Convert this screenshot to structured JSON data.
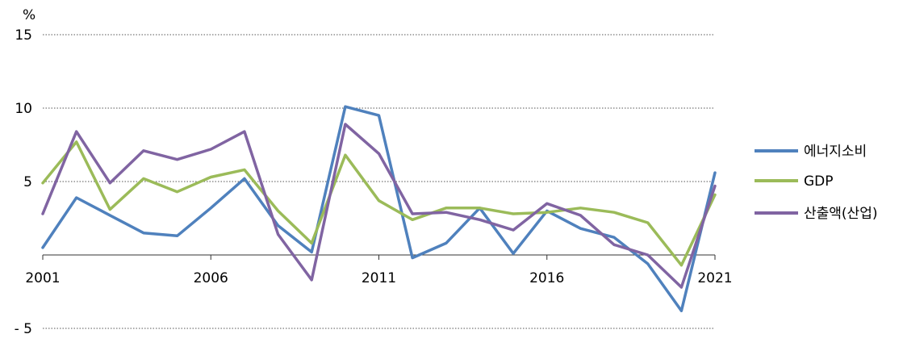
{
  "chart_data": {
    "type": "line",
    "unit_label": "%",
    "x": [
      2001,
      2002,
      2003,
      2004,
      2005,
      2006,
      2007,
      2008,
      2009,
      2010,
      2011,
      2012,
      2013,
      2014,
      2015,
      2016,
      2017,
      2018,
      2019,
      2020,
      2021
    ],
    "x_tick_labels": [
      "2001",
      "2006",
      "2011",
      "2016",
      "2021"
    ],
    "x_tick_values": [
      2001,
      2006,
      2011,
      2016,
      2021
    ],
    "y_tick_labels": [
      "15",
      "10",
      "5",
      "- 5"
    ],
    "y_tick_values": [
      15,
      10,
      5,
      -5
    ],
    "ylim": [
      -5,
      15
    ],
    "grid": "horizontal dotted",
    "legend_position": "right",
    "series": [
      {
        "name": "에너지소비",
        "color": "#4f81bd",
        "values": [
          0.5,
          3.9,
          2.7,
          1.5,
          1.3,
          3.2,
          5.2,
          2.0,
          0.2,
          10.1,
          9.5,
          -0.2,
          0.8,
          3.2,
          0.1,
          3.0,
          1.8,
          1.2,
          -0.6,
          -3.8,
          5.6
        ]
      },
      {
        "name": "GDP",
        "color": "#9bbb59",
        "values": [
          4.9,
          7.7,
          3.1,
          5.2,
          4.3,
          5.3,
          5.8,
          3.0,
          0.8,
          6.8,
          3.7,
          2.4,
          3.2,
          3.2,
          2.8,
          2.9,
          3.2,
          2.9,
          2.2,
          -0.7,
          4.1
        ]
      },
      {
        "name": "산출액(산업)",
        "color": "#8064a2",
        "values": [
          2.8,
          8.4,
          4.9,
          7.1,
          6.5,
          7.2,
          8.4,
          1.4,
          -1.7,
          8.9,
          6.9,
          2.8,
          2.9,
          2.4,
          1.7,
          3.5,
          2.7,
          0.7,
          0.0,
          -2.2,
          4.7
        ]
      }
    ]
  }
}
